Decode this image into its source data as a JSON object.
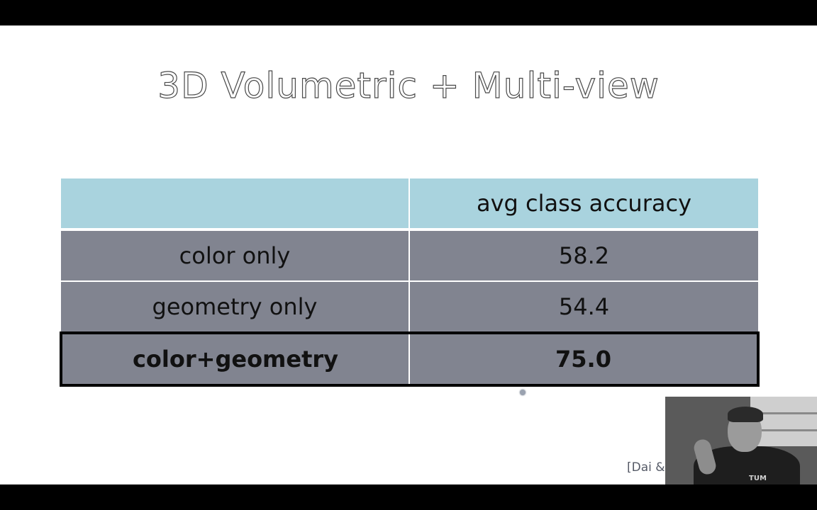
{
  "slide": {
    "title": "3D Volumetric + Multi-view",
    "citation": "[Dai &"
  },
  "table": {
    "header": [
      "",
      "avg class accuracy"
    ],
    "rows": [
      {
        "label": "color only",
        "value": "58.2",
        "highlighted": false
      },
      {
        "label": "geometry only",
        "value": "54.4",
        "highlighted": false
      },
      {
        "label": "color+geometry",
        "value": "75.0",
        "highlighted": true
      }
    ]
  },
  "webcam": {
    "shirt_text": "TUM"
  },
  "colors": {
    "header_fill": "#a9d3de",
    "row_fill": "#818490",
    "highlight_border": "#000000"
  }
}
